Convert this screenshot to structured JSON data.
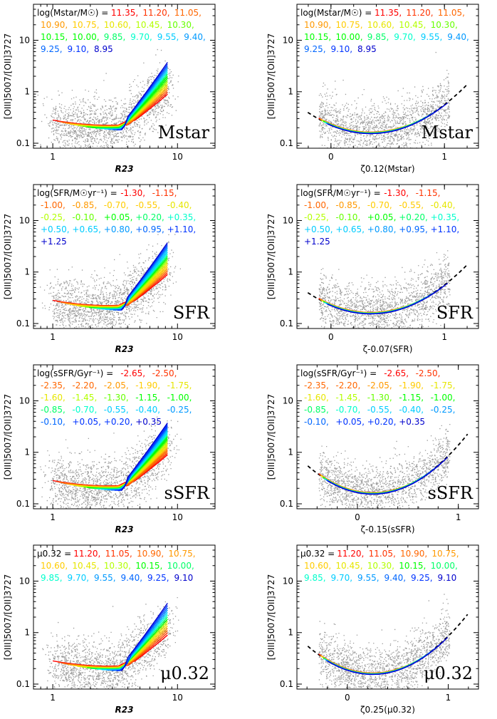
{
  "figure": {
    "ylabel": "[OIII]5007/[OII]3727",
    "colors": [
      "#ff0000",
      "#ff3300",
      "#ff6600",
      "#ff9900",
      "#ffcc00",
      "#e6e600",
      "#b3ff00",
      "#66ff00",
      "#00ff00",
      "#00ff66",
      "#00ffcc",
      "#00ccff",
      "#0099ff",
      "#0066ff",
      "#0033ff",
      "#0000cc"
    ]
  },
  "chart_data": [
    {
      "type": "line",
      "id": "mstar-r23",
      "label": "Mstar",
      "legend_title": "log(Mstar/M☉) =",
      "legend_values": [
        "11.35",
        "11.20",
        "11.05",
        "10.90",
        "10.75",
        "10.60",
        "10.45",
        "10.30",
        "10.15",
        "10.00",
        "9.85",
        "9.70",
        "9.55",
        "9.40",
        "9.25",
        "9.10",
        "8.95"
      ],
      "xlabel": "R23",
      "xscale": "log",
      "xlim": [
        0.7,
        20
      ],
      "xticks": [
        "1",
        "10"
      ],
      "yscale": "log",
      "ylim": [
        0.08,
        50
      ],
      "yticks": [
        "0.1",
        "1",
        "10"
      ]
    },
    {
      "type": "line",
      "id": "mstar-zeta",
      "label": "Mstar",
      "legend_title": "log(Mstar/M☉) =",
      "legend_values": [
        "11.35",
        "11.20",
        "11.05",
        "10.90",
        "10.75",
        "10.60",
        "10.45",
        "10.30",
        "10.15",
        "10.00",
        "9.85",
        "9.70",
        "9.55",
        "9.40",
        "9.25",
        "9.10",
        "8.95"
      ],
      "xlabel": "ζ0.12(Mstar)",
      "xscale": "linear",
      "xlim": [
        -0.3,
        1.3
      ],
      "xticks": [
        "0",
        "1"
      ],
      "yscale": "log",
      "ylim": [
        0.08,
        50
      ],
      "yticks": [
        "0.1",
        "1",
        "10"
      ]
    },
    {
      "type": "line",
      "id": "sfr-r23",
      "label": "SFR",
      "legend_title": "log(SFR/M☉yr⁻¹) =",
      "legend_values": [
        "-1.30",
        "-1.15",
        "-1.00",
        "-0.85",
        "-0.70",
        "-0.55",
        "-0.40",
        "-0.25",
        "-0.10",
        "+0.05",
        "+0.20",
        "+0.35",
        "+0.50",
        "+0.65",
        "+0.80",
        "+0.95",
        "+1.10",
        "+1.25"
      ],
      "xlabel": "R23",
      "xscale": "log",
      "xlim": [
        0.7,
        20
      ],
      "xticks": [
        "1",
        "10"
      ],
      "yscale": "log",
      "ylim": [
        0.08,
        50
      ],
      "yticks": [
        "0.1",
        "1",
        "10"
      ]
    },
    {
      "type": "line",
      "id": "sfr-zeta",
      "label": "SFR",
      "legend_title": "log(SFR/M☉yr⁻¹) =",
      "legend_values": [
        "-1.30",
        "-1.15",
        "-1.00",
        "-0.85",
        "-0.70",
        "-0.55",
        "-0.40",
        "-0.25",
        "-0.10",
        "+0.05",
        "+0.20",
        "+0.35",
        "+0.50",
        "+0.65",
        "+0.80",
        "+0.95",
        "+1.10",
        "+1.25"
      ],
      "xlabel": "ζ-0.07(SFR)",
      "xscale": "linear",
      "xlim": [
        -0.3,
        1.3
      ],
      "xticks": [
        "0",
        "1"
      ],
      "yscale": "log",
      "ylim": [
        0.08,
        50
      ],
      "yticks": [
        "0.1",
        "1",
        "10"
      ]
    },
    {
      "type": "line",
      "id": "ssfr-r23",
      "label": "sSFR",
      "legend_title": "log(sSFR/Gyr⁻¹) =",
      "legend_values": [
        "-2.65",
        "-2.50",
        "-2.35",
        "-2.20",
        "-2.05",
        "-1.90",
        "-1.75",
        "-1.60",
        "-1.45",
        "-1.30",
        "-1.15",
        "-1.00",
        "-0.85",
        "-0.70",
        "-0.55",
        "-0.40",
        "-0.25",
        "-0.10",
        "+0.05",
        "+0.20",
        "+0.35"
      ],
      "xlabel": "R23",
      "xscale": "log",
      "xlim": [
        0.7,
        20
      ],
      "xticks": [
        "1",
        "10"
      ],
      "yscale": "log",
      "ylim": [
        0.08,
        50
      ],
      "yticks": [
        "0.1",
        "1",
        "10"
      ]
    },
    {
      "type": "line",
      "id": "ssfr-zeta",
      "label": "sSFR",
      "legend_title": "log(sSFR/Gyr⁻¹) =",
      "legend_values": [
        "-2.65",
        "-2.50",
        "-2.35",
        "-2.20",
        "-2.05",
        "-1.90",
        "-1.75",
        "-1.60",
        "-1.45",
        "-1.30",
        "-1.15",
        "-1.00",
        "-0.85",
        "-0.70",
        "-0.55",
        "-0.40",
        "-0.25",
        "-0.10",
        "+0.05",
        "+0.20",
        "+0.35"
      ],
      "xlabel": "ζ-0.15(sSFR)",
      "xscale": "linear",
      "xlim": [
        -0.6,
        1.2
      ],
      "xticks": [
        "0",
        "1"
      ],
      "yscale": "log",
      "ylim": [
        0.08,
        50
      ],
      "yticks": [
        "0.1",
        "1",
        "10"
      ]
    },
    {
      "type": "line",
      "id": "mu-r23",
      "label": "μ0.32",
      "legend_title": "μ0.32 =",
      "legend_values": [
        "11.20",
        "11.05",
        "10.90",
        "10.75",
        "10.60",
        "10.45",
        "10.30",
        "10.15",
        "10.00",
        "9.85",
        "9.70",
        "9.55",
        "9.40",
        "9.25",
        "9.10"
      ],
      "xlabel": "R23",
      "xscale": "log",
      "xlim": [
        0.7,
        20
      ],
      "xticks": [
        "1",
        "10"
      ],
      "yscale": "log",
      "ylim": [
        0.08,
        50
      ],
      "yticks": [
        "0.1",
        "1",
        "10"
      ]
    },
    {
      "type": "line",
      "id": "mu-zeta",
      "label": "μ0.32",
      "legend_title": "μ0.32 =",
      "legend_values": [
        "11.20",
        "11.05",
        "10.90",
        "10.75",
        "10.60",
        "10.45",
        "10.30",
        "10.15",
        "10.00",
        "9.85",
        "9.70",
        "9.55",
        "9.40",
        "9.25",
        "9.10"
      ],
      "xlabel": "ζ0.25(μ0.32)",
      "xscale": "linear",
      "xlim": [
        -0.5,
        1.3
      ],
      "xticks": [
        "0",
        "1"
      ],
      "yscale": "log",
      "ylim": [
        0.08,
        50
      ],
      "yticks": [
        "0.1",
        "1",
        "10"
      ]
    }
  ]
}
